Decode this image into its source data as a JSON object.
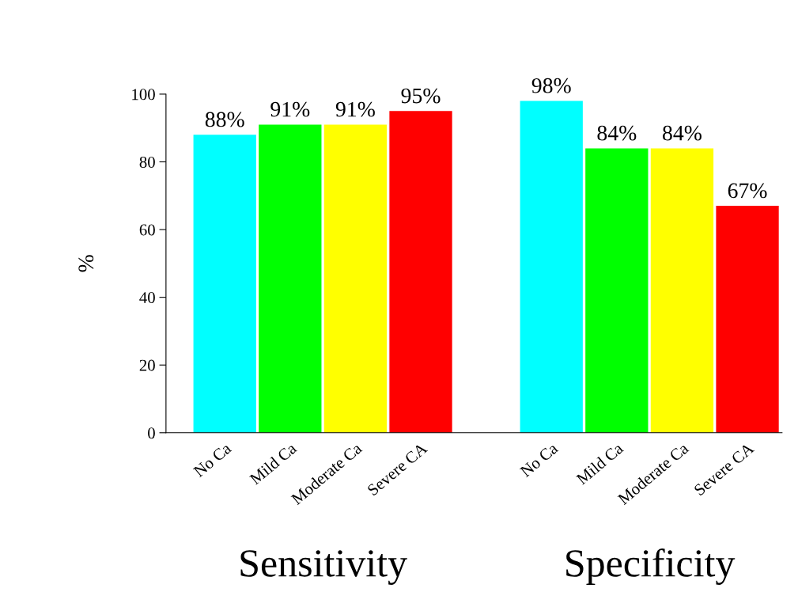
{
  "chart_data": {
    "type": "bar",
    "categories": [
      "No Ca",
      "Mild Ca",
      "Moderate Ca",
      "Severe CA",
      null,
      "No Ca",
      "Mild Ca",
      "Moderate Ca",
      "Severe CA"
    ],
    "values": [
      88,
      91,
      91,
      95,
      null,
      98,
      84,
      84,
      67
    ],
    "colors": [
      "#00ffff",
      "#00ff00",
      "#ffff00",
      "#ff0000",
      null,
      "#00ffff",
      "#00ff00",
      "#ffff00",
      "#ff0000"
    ],
    "value_labels": [
      "88%",
      "91%",
      "91%",
      "95%",
      null,
      "98%",
      "84%",
      "84%",
      "67%"
    ],
    "ylabel": "%",
    "ylim": [
      0,
      100
    ],
    "yticks": [
      0,
      20,
      40,
      60,
      80,
      100
    ],
    "annotations": [
      "Sensitivity",
      "Specificity"
    ],
    "grid": false,
    "legend": false
  }
}
